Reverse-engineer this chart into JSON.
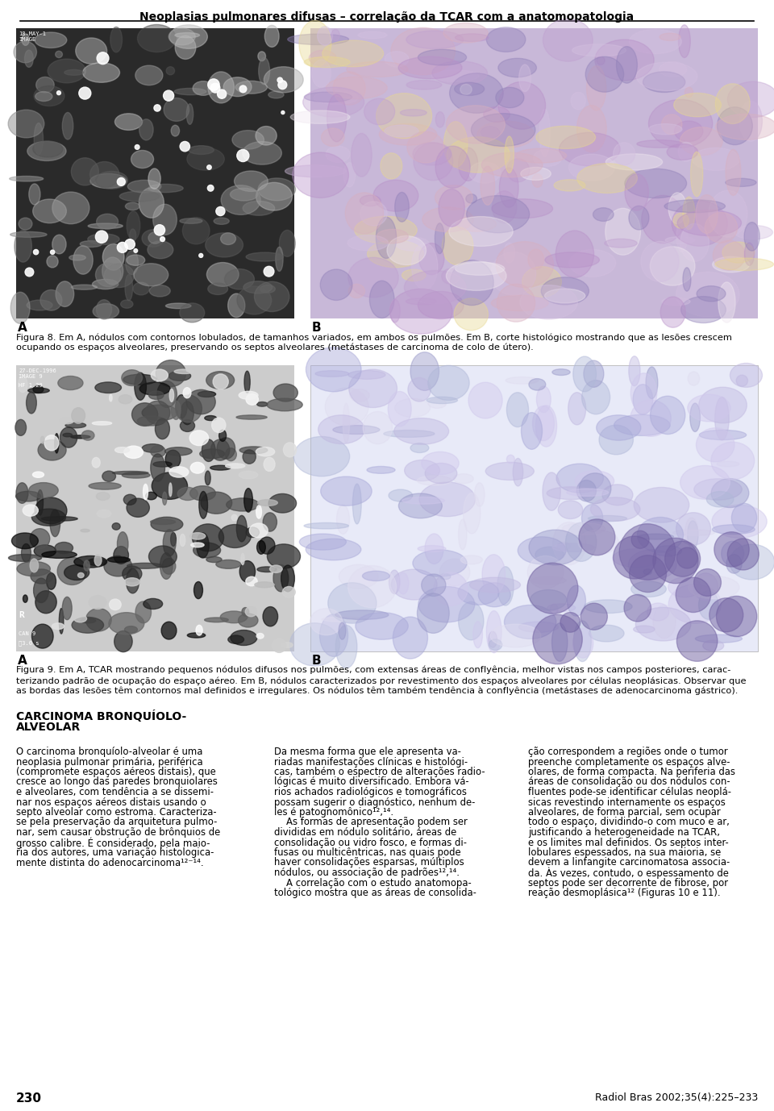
{
  "header_title": "Neoplasias pulmonares difusas – correlação da TCAR com a anatomopatologia",
  "page_number": "230",
  "journal_ref": "Radiol Bras 2002;35(4):225–233",
  "fig8_caption_line1": "Figura 8. Em A, nódulos com contornos lobulados, de tamanhos variados, em ambos os pulmões. Em B, corte histológico mostrando que as lesões crescem",
  "fig8_caption_line2": "ocupando os espaços alveolares, preservando os septos alveolares (metástases de carcinoma de colo de útero).",
  "fig9_caption_line1": "Figura 9. Em A, TCAR mostrando pequenos nódulos difusos nos pulmões, com extensas áreas de conflуência, melhor vistas nos campos posteriores, carac-",
  "fig9_caption_line2": "terizando padrão de ocupação do espaço aéreo. Em B, nódulos caracterizados por revestimento dos espaços alveolares por células neoplásicas. Observar que",
  "fig9_caption_line3": "as bordas das lesões têm contornos mal definidos e irregulares. Os nódulos têm também tendência à conflуência (metástases de adenocarcinoma gástrico).",
  "section_title_line1": "CARCINOMA BRONQUÍOLO-",
  "section_title_line2": "ALVEOLAR",
  "col1_lines": [
    "O carcinoma bronquíolo-alveolar é uma",
    "neoplasia pulmonar primária, periférica",
    "(compromete espaços aéreos distais), que",
    "cresce ao longo das paredes bronquiolares",
    "e alveolares, com tendência a se dissemi-",
    "nar nos espaços aéreos distais usando o",
    "septo alveolar como estroma. Caracteriza-",
    "se pela preservação da arquitetura pulmo-",
    "nar, sem causar obstrução de brônquios de",
    "grosso calibre. É considerado, pela maio-",
    "ria dos autores, uma variação histologica-",
    "mente distinta do adenocarcinoma¹²⁻¹⁴."
  ],
  "col2_lines": [
    "Da mesma forma que ele apresenta va-",
    "riadas manifestações clínicas e histológi-",
    "cas, também o espectro de alterações radio-",
    "lógicas é muito diversificado. Embora vá-",
    "rios achados radiológicos e tomográficos",
    "possam sugerir o diagnóstico, nenhum de-",
    "les é patognomônico¹²,¹⁴.",
    "    As formas de apresentação podem ser",
    "divididas em nódulo solitário, áreas de",
    "consolidação ou vidro fosco, e formas di-",
    "fusas ou multicêntricas, nas quais pode",
    "haver consolidações esparsas, múltiplos",
    "nódulos, ou associação de padrões¹²,¹⁴.",
    "    A correlação com o estudo anatomopa-",
    "tológico mostra que as áreas de consolida-"
  ],
  "col3_lines": [
    "ção correspondem a regiões onde o tumor",
    "preenche completamente os espaços alve-",
    "olares, de forma compacta. Na periferia das",
    "áreas de consolidação ou dos nódulos con-",
    "fluentes pode-se identificar células neoplá-",
    "sicas revestindo internamente os espaços",
    "alveolares, de forma parcial, sem ocupar",
    "todo o espaço, dividindo-o com muco e ar,",
    "justificando a heterogeneidade na TCAR,",
    "e os limites mal definidos. Os septos inter-",
    "lobulares espessados, na sua maioria, se",
    "devem a linfangite carcinomatosa associa-",
    "da. Às vezes, contudo, o espessamento de",
    "septos pode ser decorrente de fibrose, por",
    "reação desmoplásica¹² (Figuras 10 e 11)."
  ],
  "img8a_color": "#888888",
  "img8b_color_bg": "#d4b8d4",
  "img8b_color_center": "#9080b8",
  "img9a_color": "#aaaaaa",
  "img9b_color": "#dde0f0",
  "background_color": "#ffffff",
  "text_color": "#000000",
  "header_color": "#000000"
}
